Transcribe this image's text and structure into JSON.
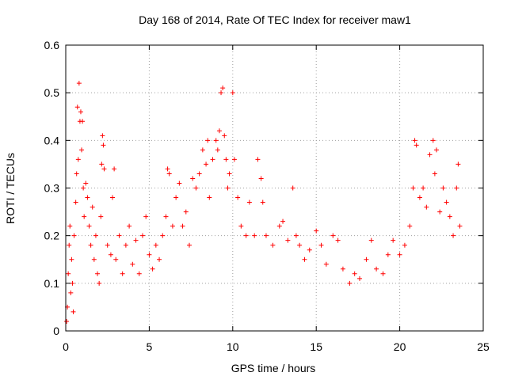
{
  "chart_data": {
    "type": "scatter",
    "title": "Day 168 of 2014, Rate Of TEC Index for receiver maw1",
    "xlabel": "GPS time / hours",
    "ylabel": "ROTI / TECUs",
    "xlim": [
      0,
      25
    ],
    "ylim": [
      0,
      0.6
    ],
    "xticks": [
      "0",
      "5",
      "10",
      "15",
      "20",
      "25"
    ],
    "yticks": [
      "0",
      "0.1",
      "0.2",
      "0.3",
      "0.4",
      "0.5",
      "0.6"
    ],
    "grid": true,
    "marker": "plus",
    "color": "#ff0000",
    "series": [
      {
        "values_description_omitted": true,
        "points": [
          [
            0.05,
            0.02
          ],
          [
            0.1,
            0.05
          ],
          [
            0.15,
            0.12
          ],
          [
            0.2,
            0.18
          ],
          [
            0.25,
            0.22
          ],
          [
            0.3,
            0.08
          ],
          [
            0.35,
            0.15
          ],
          [
            0.4,
            0.1
          ],
          [
            0.45,
            0.04
          ],
          [
            0.5,
            0.2
          ],
          [
            0.6,
            0.27
          ],
          [
            0.65,
            0.33
          ],
          [
            0.7,
            0.47
          ],
          [
            0.75,
            0.36
          ],
          [
            0.8,
            0.52
          ],
          [
            0.85,
            0.44
          ],
          [
            0.9,
            0.46
          ],
          [
            0.95,
            0.38
          ],
          [
            1.0,
            0.44
          ],
          [
            1.05,
            0.3
          ],
          [
            1.1,
            0.24
          ],
          [
            1.2,
            0.31
          ],
          [
            1.3,
            0.28
          ],
          [
            1.4,
            0.22
          ],
          [
            1.5,
            0.18
          ],
          [
            1.6,
            0.26
          ],
          [
            1.7,
            0.15
          ],
          [
            1.8,
            0.2
          ],
          [
            1.9,
            0.12
          ],
          [
            2.0,
            0.1
          ],
          [
            2.1,
            0.24
          ],
          [
            2.15,
            0.35
          ],
          [
            2.2,
            0.41
          ],
          [
            2.25,
            0.39
          ],
          [
            2.3,
            0.34
          ],
          [
            2.5,
            0.18
          ],
          [
            2.7,
            0.16
          ],
          [
            2.8,
            0.28
          ],
          [
            2.9,
            0.34
          ],
          [
            3.0,
            0.15
          ],
          [
            3.2,
            0.2
          ],
          [
            3.4,
            0.12
          ],
          [
            3.6,
            0.18
          ],
          [
            3.8,
            0.22
          ],
          [
            4.0,
            0.14
          ],
          [
            4.2,
            0.19
          ],
          [
            4.4,
            0.12
          ],
          [
            4.6,
            0.2
          ],
          [
            4.8,
            0.24
          ],
          [
            5.0,
            0.16
          ],
          [
            5.2,
            0.13
          ],
          [
            5.4,
            0.18
          ],
          [
            5.6,
            0.15
          ],
          [
            5.8,
            0.2
          ],
          [
            6.0,
            0.24
          ],
          [
            6.1,
            0.34
          ],
          [
            6.2,
            0.33
          ],
          [
            6.4,
            0.22
          ],
          [
            6.6,
            0.28
          ],
          [
            6.8,
            0.31
          ],
          [
            7.0,
            0.22
          ],
          [
            7.2,
            0.25
          ],
          [
            7.4,
            0.18
          ],
          [
            7.6,
            0.32
          ],
          [
            7.8,
            0.3
          ],
          [
            8.0,
            0.33
          ],
          [
            8.2,
            0.38
          ],
          [
            8.4,
            0.35
          ],
          [
            8.5,
            0.4
          ],
          [
            8.6,
            0.28
          ],
          [
            8.8,
            0.36
          ],
          [
            9.0,
            0.4
          ],
          [
            9.1,
            0.38
          ],
          [
            9.2,
            0.42
          ],
          [
            9.3,
            0.5
          ],
          [
            9.4,
            0.51
          ],
          [
            9.5,
            0.41
          ],
          [
            9.6,
            0.36
          ],
          [
            9.7,
            0.3
          ],
          [
            9.8,
            0.33
          ],
          [
            10.0,
            0.5
          ],
          [
            10.1,
            0.36
          ],
          [
            10.3,
            0.28
          ],
          [
            10.5,
            0.22
          ],
          [
            10.8,
            0.2
          ],
          [
            11.0,
            0.27
          ],
          [
            11.3,
            0.2
          ],
          [
            11.5,
            0.36
          ],
          [
            11.7,
            0.32
          ],
          [
            11.8,
            0.27
          ],
          [
            12.0,
            0.2
          ],
          [
            12.4,
            0.18
          ],
          [
            12.8,
            0.22
          ],
          [
            13.0,
            0.23
          ],
          [
            13.3,
            0.19
          ],
          [
            13.6,
            0.3
          ],
          [
            13.8,
            0.2
          ],
          [
            14.0,
            0.18
          ],
          [
            14.3,
            0.15
          ],
          [
            14.6,
            0.17
          ],
          [
            15.0,
            0.21
          ],
          [
            15.3,
            0.18
          ],
          [
            15.6,
            0.14
          ],
          [
            16.0,
            0.2
          ],
          [
            16.3,
            0.19
          ],
          [
            16.6,
            0.13
          ],
          [
            17.0,
            0.1
          ],
          [
            17.3,
            0.12
          ],
          [
            17.6,
            0.11
          ],
          [
            18.0,
            0.15
          ],
          [
            18.3,
            0.19
          ],
          [
            18.6,
            0.13
          ],
          [
            19.0,
            0.12
          ],
          [
            19.3,
            0.16
          ],
          [
            19.6,
            0.19
          ],
          [
            20.0,
            0.16
          ],
          [
            20.3,
            0.18
          ],
          [
            20.6,
            0.22
          ],
          [
            20.8,
            0.3
          ],
          [
            20.9,
            0.4
          ],
          [
            21.0,
            0.39
          ],
          [
            21.2,
            0.28
          ],
          [
            21.4,
            0.3
          ],
          [
            21.6,
            0.26
          ],
          [
            21.8,
            0.37
          ],
          [
            22.0,
            0.4
          ],
          [
            22.1,
            0.33
          ],
          [
            22.2,
            0.38
          ],
          [
            22.4,
            0.25
          ],
          [
            22.6,
            0.3
          ],
          [
            22.8,
            0.27
          ],
          [
            23.0,
            0.24
          ],
          [
            23.2,
            0.2
          ],
          [
            23.4,
            0.3
          ],
          [
            23.5,
            0.35
          ],
          [
            23.6,
            0.22
          ]
        ]
      }
    ]
  }
}
